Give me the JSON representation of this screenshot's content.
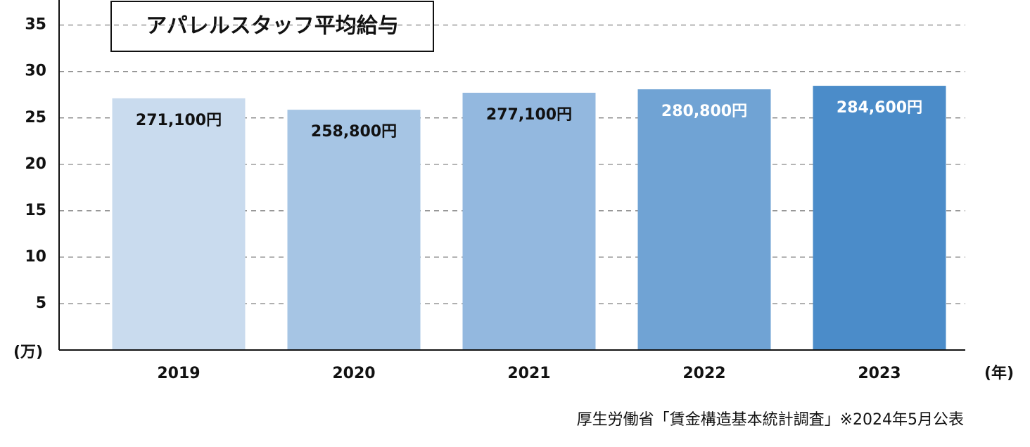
{
  "chart_data": {
    "type": "bar",
    "title": "アパレルスタッフ平均給与",
    "y_unit": "(万)",
    "x_unit": "(年)",
    "source": "厚生労働省「賃金構造基本統計調査」※2024年5月公表",
    "categories": [
      "2019",
      "2020",
      "2021",
      "2022",
      "2023"
    ],
    "values": [
      27.11,
      25.88,
      27.71,
      28.08,
      28.46
    ],
    "value_labels": [
      "271,100円",
      "258,800円",
      "277,100円",
      "280,800円",
      "284,600円"
    ],
    "colors": [
      "#c9dbee",
      "#a6c5e4",
      "#93b8df",
      "#70a3d4",
      "#4b8cc9"
    ],
    "label_colors": [
      "#111111",
      "#111111",
      "#111111",
      "#ffffff",
      "#ffffff"
    ],
    "ylim": [
      0,
      37.7
    ],
    "yticks": [
      5,
      10,
      15,
      20,
      25,
      30,
      35
    ],
    "grid": true
  }
}
